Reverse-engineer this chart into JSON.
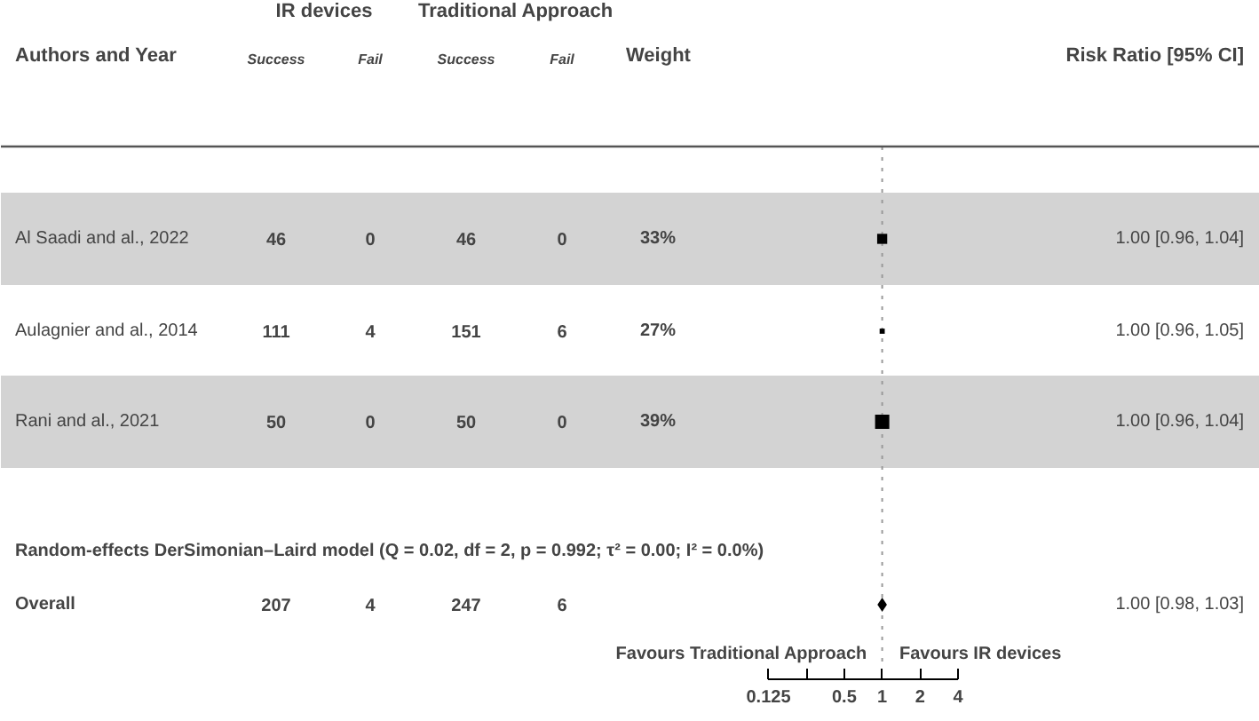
{
  "chart_data": {
    "type": "scatter",
    "orientation": "horizontal",
    "log": "x",
    "categories": [
      "Al Saadi and al., 2022",
      "Aulagnier and al., 2014",
      "Rani and al., 2021",
      "Overall"
    ],
    "series": [
      {
        "type": "scatter",
        "marker": "square",
        "color": "#000000",
        "values": [
          1.0,
          1.0,
          1.0,
          null
        ],
        "sizes": [
          0.5,
          0.13,
          1,
          null
        ]
      },
      {
        "type": "scatter",
        "marker": "diamond",
        "color": "#000000",
        "values": [
          null,
          null,
          null,
          1.0
        ]
      }
    ],
    "value_labels": [
      "1.00 [0.96, 1.04]",
      "1.00 [0.96, 1.05]",
      "1.00 [0.96, 1.04]",
      "1.00 [0.98, 1.03]"
    ],
    "xlim": [
      1e-07,
      1000
    ],
    "xticks": [
      0.125,
      {
        "value": 0.25,
        "label": null
      },
      0.5,
      1,
      2,
      4
    ],
    "ref_lines": [
      {
        "axis": "x",
        "value": 1,
        "line_style": "dotted",
        "color": "#999999"
      }
    ],
    "bands": [
      {
        "axis": "y",
        "from": "Al Saadi and al., 2022",
        "to": "Al Saadi and al., 2022",
        "color": "#d3d3d3"
      },
      {
        "axis": "y",
        "from": "Rani and al., 2021",
        "to": "Rani and al., 2021",
        "color": "#d3d3d3"
      }
    ],
    "grid": false,
    "annotations": [
      "IR devices",
      "Traditional Approach",
      "Authors and Year",
      "Success",
      "Fail",
      "Success",
      "Fail",
      "Weight",
      "Risk Ratio [95% CI]",
      "46",
      "0",
      "46",
      "0",
      "33%",
      "111",
      "4",
      "151",
      "6",
      "27%",
      "50",
      "0",
      "50",
      "0",
      "39%",
      "207",
      "4",
      "247",
      "6",
      "Random-effects DerSimonian–Laird model (Q = 0.02, df = 2, p = 0.992; τ² = 0.00; I² = 0.0%)",
      "Favours Traditional Approach",
      "Favours IR devices"
    ]
  }
}
